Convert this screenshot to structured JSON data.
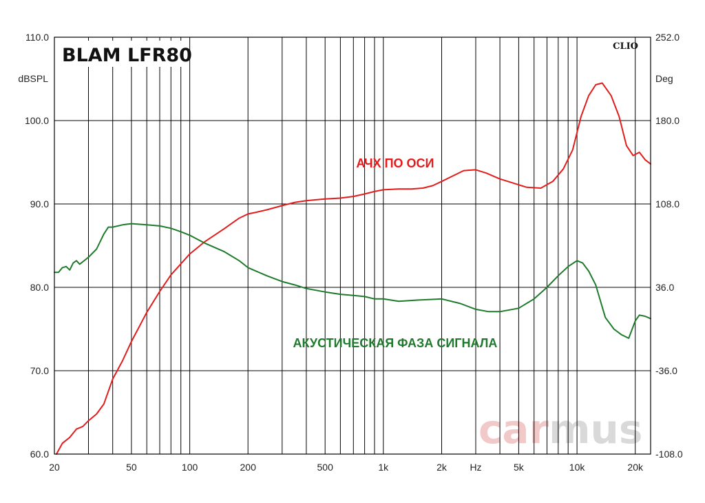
{
  "chart_data": {
    "type": "line",
    "title": "BLAM LFR80",
    "brand_mark": "CLIO",
    "watermark": {
      "left": "car",
      "right": "mus",
      "left_color": "#f2c9c9",
      "right_color": "#d9d9d9"
    },
    "x_unit_label": "Hz",
    "x_scale": "log",
    "xlim": [
      20,
      24000
    ],
    "x_ticks": [
      {
        "value": 20,
        "label": "20"
      },
      {
        "value": 50,
        "label": "50"
      },
      {
        "value": 100,
        "label": "100"
      },
      {
        "value": 200,
        "label": "200"
      },
      {
        "value": 500,
        "label": "500"
      },
      {
        "value": 1000,
        "label": "1k"
      },
      {
        "value": 2000,
        "label": "2k"
      },
      {
        "value": 3000,
        "label": "Hz"
      },
      {
        "value": 5000,
        "label": "5k"
      },
      {
        "value": 10000,
        "label": "10k"
      },
      {
        "value": 20000,
        "label": "20k"
      }
    ],
    "x_gridlines": [
      30,
      40,
      50,
      60,
      70,
      80,
      90,
      100,
      200,
      300,
      400,
      500,
      600,
      700,
      800,
      900,
      1000,
      2000,
      3000,
      4000,
      5000,
      6000,
      7000,
      8000,
      9000,
      10000,
      20000
    ],
    "y_left": {
      "unit_label": "dBSPL",
      "range": [
        60,
        110
      ],
      "ticks": [
        "60.0",
        "70.0",
        "80.0",
        "90.0",
        "100.0",
        "110.0"
      ],
      "tick_values": [
        60,
        70,
        80,
        90,
        100,
        110
      ]
    },
    "y_right": {
      "unit_label": "Deg",
      "range": [
        -108,
        252
      ],
      "ticks": [
        "-108.0",
        "-36.0",
        "36.0",
        "108.0",
        "180.0",
        "252.0"
      ],
      "tick_values": [
        -108,
        -36,
        36,
        108,
        180,
        252
      ]
    },
    "grid": true,
    "series": [
      {
        "name": "АЧХ ПО ОСИ",
        "axis": "left",
        "color": "#e31b1b",
        "x": [
          20.5,
          22,
          24,
          26,
          28,
          30,
          33,
          36,
          40,
          45,
          50,
          60,
          70,
          80,
          100,
          120,
          150,
          180,
          200,
          220,
          250,
          300,
          350,
          400,
          450,
          500,
          600,
          700,
          800,
          900,
          1000,
          1200,
          1400,
          1600,
          1800,
          2000,
          2300,
          2600,
          3000,
          3400,
          4000,
          4700,
          5500,
          6500,
          7500,
          8500,
          9500,
          10500,
          11500,
          12500,
          13500,
          15000,
          16500,
          18000,
          19500,
          21000,
          22500,
          24000
        ],
        "values": [
          59.5,
          61.3,
          62.0,
          63.0,
          63.3,
          64.0,
          64.8,
          66.0,
          69.0,
          71.2,
          73.5,
          77.0,
          79.5,
          81.5,
          84.0,
          85.5,
          87.0,
          88.3,
          88.8,
          89.0,
          89.3,
          89.8,
          90.2,
          90.4,
          90.5,
          90.6,
          90.7,
          90.9,
          91.2,
          91.5,
          91.7,
          91.8,
          91.8,
          91.9,
          92.2,
          92.7,
          93.4,
          94.0,
          94.1,
          93.7,
          93.0,
          92.5,
          92.0,
          91.9,
          92.7,
          94.2,
          96.5,
          100.5,
          103.0,
          104.3,
          104.5,
          103.0,
          100.5,
          97.0,
          95.8,
          96.2,
          95.3,
          94.8
        ]
      },
      {
        "name": "АКУСТИЧЕСКАЯ ФАЗА СИГНАЛА",
        "axis": "right",
        "color": "#1e7a2b",
        "x": [
          20,
          21,
          22,
          23,
          24,
          25,
          26,
          27,
          28,
          30,
          33,
          36,
          38,
          40,
          45,
          50,
          60,
          70,
          80,
          90,
          100,
          120,
          150,
          180,
          200,
          250,
          300,
          350,
          400,
          500,
          600,
          700,
          800,
          900,
          1000,
          1200,
          1500,
          2000,
          2500,
          3000,
          3500,
          4000,
          5000,
          6000,
          7000,
          8000,
          9000,
          10000,
          10700,
          11500,
          12500,
          14000,
          15500,
          17000,
          18500,
          20000,
          21000,
          22500,
          24000
        ],
        "values": [
          49,
          49,
          53,
          54,
          51,
          57,
          59,
          56,
          58,
          62,
          69,
          82,
          88,
          88,
          90,
          91,
          90,
          89,
          87,
          84,
          81,
          74,
          67,
          59,
          53,
          46,
          41,
          38,
          35,
          32,
          30,
          29,
          28,
          26,
          26,
          24,
          25,
          26,
          22,
          17,
          15,
          15,
          18,
          26,
          36,
          46,
          54,
          59,
          57,
          50,
          38,
          10,
          0,
          -5,
          -8,
          7,
          12,
          11,
          9
        ]
      }
    ],
    "annotations": [
      {
        "text": "АЧХ ПО ОСИ",
        "series": 0,
        "x": 1150,
        "y": 94.4
      },
      {
        "text": "АКУСТИЧЕСКАЯ ФАЗА СИГНАЛА",
        "series": 1,
        "x": 1150,
        "y": 72.8
      }
    ]
  }
}
